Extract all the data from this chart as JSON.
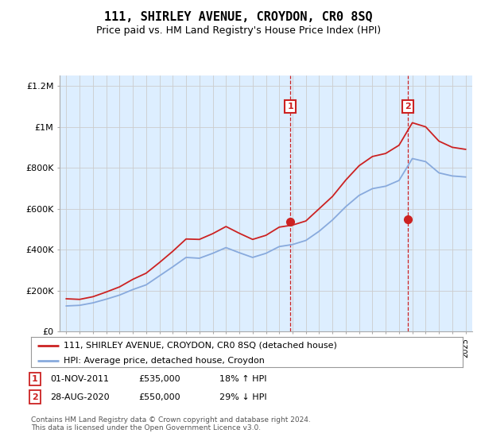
{
  "title": "111, SHIRLEY AVENUE, CROYDON, CR0 8SQ",
  "subtitle": "Price paid vs. HM Land Registry's House Price Index (HPI)",
  "title_fontsize": 11,
  "subtitle_fontsize": 9,
  "background_color": "#ffffff",
  "plot_bg_color": "#ddeeff",
  "ylim": [
    0,
    1250000
  ],
  "yticks": [
    0,
    200000,
    400000,
    600000,
    800000,
    1000000,
    1200000
  ],
  "ytick_labels": [
    "£0",
    "£200K",
    "£400K",
    "£600K",
    "£800K",
    "£1M",
    "£1.2M"
  ],
  "hpi_color": "#88aadd",
  "sale_color": "#cc2222",
  "grid_color": "#cccccc",
  "dashed_color": "#cc2222",
  "legend_sale_label": "111, SHIRLEY AVENUE, CROYDON, CR0 8SQ (detached house)",
  "legend_hpi_label": "HPI: Average price, detached house, Croydon",
  "copyright": "Contains HM Land Registry data © Crown copyright and database right 2024.\nThis data is licensed under the Open Government Licence v3.0.",
  "years": [
    1995,
    1996,
    1997,
    1998,
    1999,
    2000,
    2001,
    2002,
    2003,
    2004,
    2005,
    2006,
    2007,
    2008,
    2009,
    2010,
    2011,
    2012,
    2013,
    2014,
    2015,
    2016,
    2017,
    2018,
    2019,
    2020,
    2021,
    2022,
    2023,
    2024,
    2025
  ],
  "hpi_values": [
    125000,
    128000,
    140000,
    158000,
    178000,
    205000,
    228000,
    272000,
    316000,
    362000,
    358000,
    382000,
    410000,
    385000,
    362000,
    382000,
    415000,
    425000,
    445000,
    490000,
    545000,
    610000,
    665000,
    698000,
    710000,
    738000,
    845000,
    830000,
    775000,
    760000,
    755000
  ],
  "red_values": [
    160000,
    157000,
    170000,
    193000,
    218000,
    255000,
    285000,
    337000,
    392000,
    452000,
    450000,
    478000,
    513000,
    480000,
    450000,
    470000,
    510000,
    520000,
    540000,
    600000,
    660000,
    740000,
    810000,
    855000,
    870000,
    910000,
    1020000,
    1000000,
    930000,
    900000,
    890000
  ],
  "sale1_year": 2011.83,
  "sale1_price": 535000,
  "sale2_year": 2020.67,
  "sale2_price": 550000,
  "fn1_date": "01-NOV-2011",
  "fn1_price": "£535,000",
  "fn1_pct": "18% ↑ HPI",
  "fn2_date": "28-AUG-2020",
  "fn2_price": "£550,000",
  "fn2_pct": "29% ↓ HPI"
}
